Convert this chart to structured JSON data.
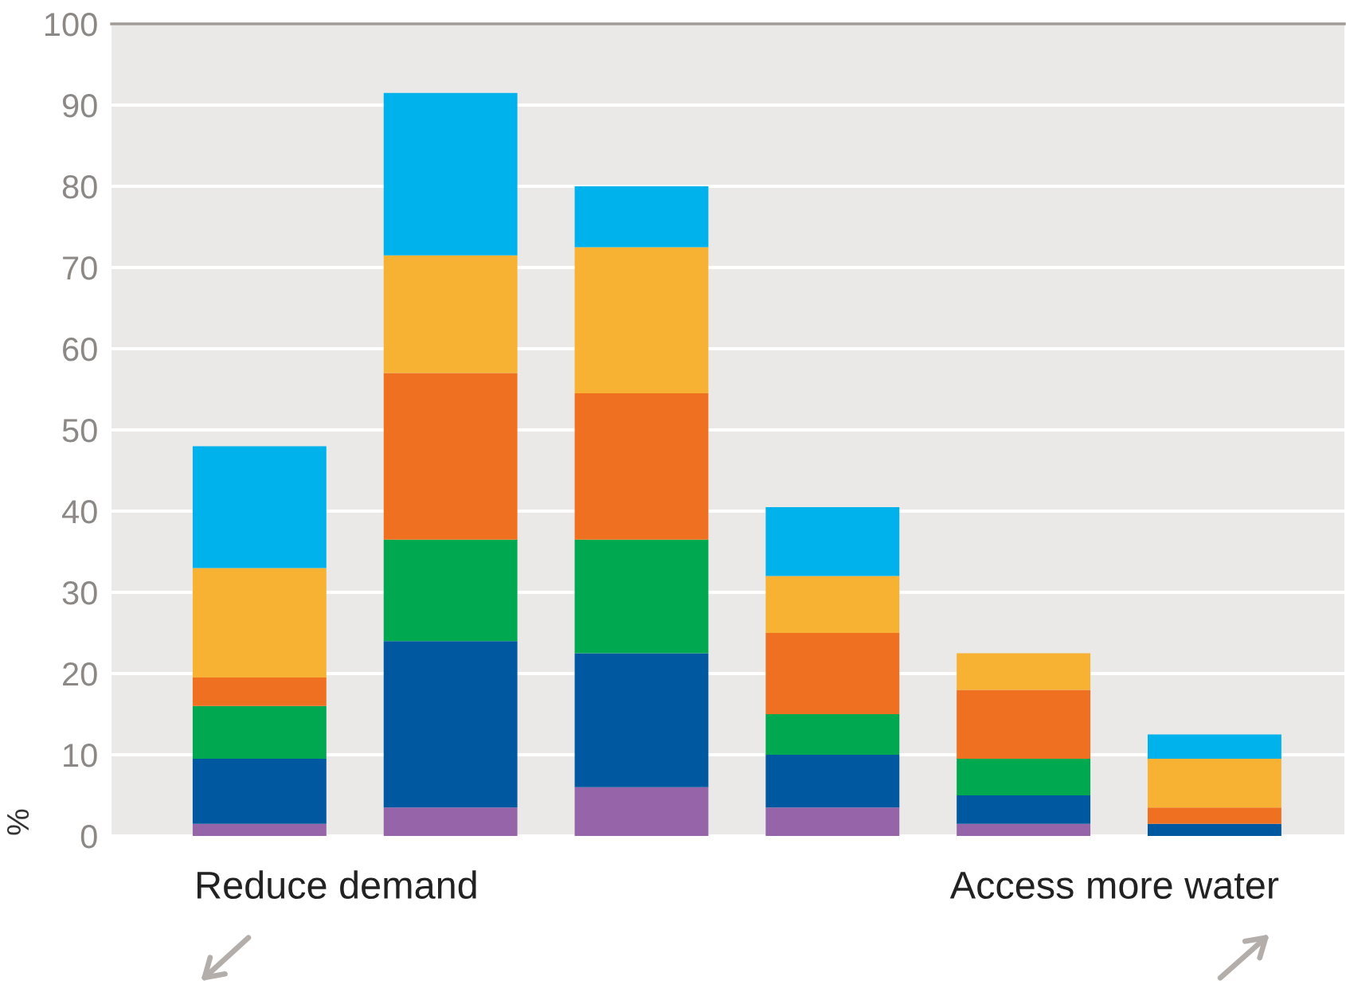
{
  "chart_data": {
    "type": "bar",
    "stacked": true,
    "categories": [
      null,
      null,
      null,
      null,
      null,
      null
    ],
    "series": [
      {
        "color": "#9564a9",
        "values": [
          1.5,
          3.5,
          6,
          3.5,
          1.5,
          null
        ]
      },
      {
        "color": "#0058a0",
        "values": [
          8,
          20.5,
          16.5,
          6.5,
          3.5,
          1.5
        ]
      },
      {
        "color": "#00a94f",
        "values": [
          6.5,
          12.5,
          14,
          5,
          4.5,
          null
        ]
      },
      {
        "color": "#f07022",
        "values": [
          3.5,
          20.5,
          18,
          10,
          8.5,
          2
        ]
      },
      {
        "color": "#f7b133",
        "values": [
          13.5,
          14.5,
          18,
          7,
          4.5,
          6
        ]
      },
      {
        "color": "#00b2ec",
        "values": [
          15,
          20,
          7.5,
          8.5,
          null,
          3
        ]
      }
    ],
    "ylim": [
      0,
      100
    ],
    "yticks": [
      0,
      10,
      20,
      30,
      40,
      50,
      60,
      70,
      80,
      90,
      100
    ],
    "ylabel": "%",
    "grid": "y",
    "annotations": [
      "Reduce demand",
      "Access more water"
    ]
  }
}
